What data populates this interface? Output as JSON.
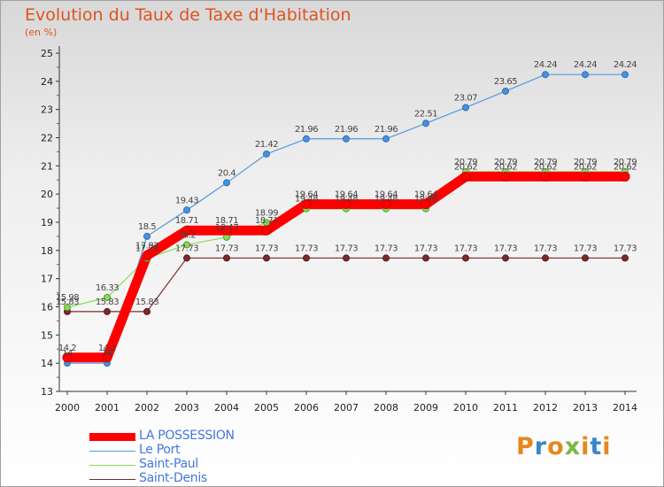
{
  "chart_data": {
    "type": "line",
    "title": "Evolution du Taux de Taxe d'Habitation",
    "ylabel": "(en %)",
    "ylim": [
      13,
      25
    ],
    "yticks": [
      13,
      14,
      15,
      16,
      17,
      18,
      19,
      20,
      21,
      22,
      23,
      24,
      25
    ],
    "x": [
      "2000",
      "2001",
      "2002",
      "2003",
      "2004",
      "2005",
      "2006",
      "2007",
      "2008",
      "2009",
      "2010",
      "2011",
      "2012",
      "2013",
      "2014"
    ],
    "legend_position": "bottom-left",
    "series": [
      {
        "name": "LA POSSESSION",
        "color": "#ff0000",
        "values": [
          14.2,
          14.2,
          17.82,
          18.71,
          18.71,
          18.71,
          19.64,
          19.64,
          19.64,
          19.64,
          20.62,
          20.62,
          20.62,
          20.62,
          20.62
        ],
        "labels": [
          "14.2",
          "14.2",
          "17.82",
          "18.71",
          "18.71",
          "18.71",
          "19.64",
          "19.64",
          "19.64",
          "19.64",
          "20.62",
          "20.62",
          "20.62",
          "20.62",
          "20.62"
        ]
      },
      {
        "name": "Le Port",
        "color": "#5599dd",
        "values": [
          14.0,
          14.0,
          18.5,
          19.43,
          20.4,
          21.42,
          21.96,
          21.96,
          21.96,
          22.51,
          23.07,
          23.65,
          24.24,
          24.24,
          24.24
        ],
        "labels": [
          "14",
          "14",
          "18.5",
          "19.43",
          "20.4",
          "21.42",
          "21.96",
          "21.96",
          "21.96",
          "22.51",
          "23.07",
          "23.65",
          "24.24",
          "24.24",
          "24.24"
        ]
      },
      {
        "name": "Saint-Paul",
        "color": "#88dd55",
        "values": [
          15.98,
          16.33,
          17.72,
          18.2,
          18.47,
          18.99,
          19.48,
          19.48,
          19.48,
          19.48,
          20.79,
          20.79,
          20.79,
          20.79,
          20.79
        ],
        "labels": [
          "15.98",
          "16.33",
          "17.72",
          "18.2",
          "18.47",
          "18.99",
          "19.48",
          "19.48",
          "19.48",
          "19.48",
          "20.79",
          "20.79",
          "20.79",
          "20.79",
          "20.79"
        ]
      },
      {
        "name": "Saint-Denis",
        "color": "#7a2a2a",
        "values": [
          15.83,
          15.83,
          15.83,
          17.73,
          17.73,
          17.73,
          17.73,
          17.73,
          17.73,
          17.73,
          17.73,
          17.73,
          17.73,
          17.73,
          17.73
        ],
        "labels": [
          "15.83",
          "15.83",
          "15.83",
          "17.73",
          "17.73",
          "17.73",
          "17.73",
          "17.73",
          "17.73",
          "17.73",
          "17.73",
          "17.73",
          "17.73",
          "17.73",
          "17.73"
        ]
      }
    ]
  },
  "logo": {
    "text": "Proxiti",
    "colors": [
      "#e8861a",
      "#3b86c6",
      "#e8861a",
      "#7ab648",
      "#e8861a",
      "#3b86c6",
      "#e8861a"
    ]
  }
}
